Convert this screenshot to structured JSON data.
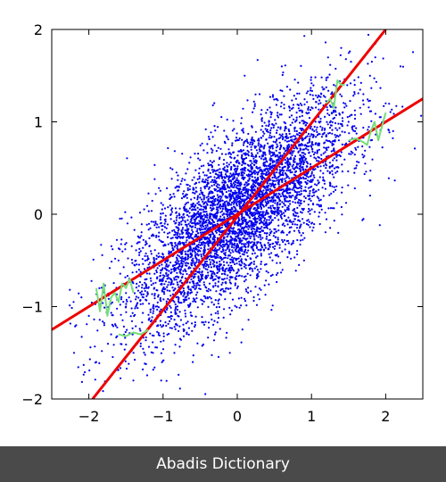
{
  "chart_data": {
    "type": "scatter",
    "title": "",
    "xlabel": "",
    "ylabel": "",
    "xlim": [
      -2.5,
      2.5
    ],
    "ylim": [
      -2,
      2
    ],
    "xticks": [
      -2,
      -1,
      0,
      1,
      2
    ],
    "yticks": [
      -2,
      -1,
      0,
      1,
      2
    ],
    "xtick_labels": [
      "−2",
      "−1",
      "0",
      "1",
      "2"
    ],
    "ytick_labels": [
      "−2",
      "−1",
      "0",
      "1",
      "2"
    ],
    "grid": false,
    "series": [
      {
        "kind": "scatter",
        "color": "#0000ee",
        "points": [
          [
            0.0,
            0.0
          ],
          [
            -0.3,
            -0.25
          ],
          [
            0.35,
            0.3
          ],
          [
            0.6,
            0.55
          ],
          [
            -0.6,
            -0.5
          ],
          [
            0.9,
            0.7
          ],
          [
            -0.9,
            -0.7
          ],
          [
            1.2,
            0.8
          ],
          [
            -1.2,
            -0.8
          ],
          [
            0.2,
            -0.3
          ],
          [
            -0.2,
            0.3
          ],
          [
            0.5,
            0.0
          ],
          [
            -0.5,
            0.0
          ],
          [
            1.0,
            0.3
          ],
          [
            -1.0,
            -0.3
          ],
          [
            1.5,
            1.0
          ],
          [
            -1.5,
            -1.0
          ],
          [
            0.8,
            1.1
          ],
          [
            -0.8,
            -1.1
          ],
          [
            1.8,
            0.8
          ],
          [
            -1.8,
            -0.9
          ],
          [
            0.1,
            0.6
          ],
          [
            -0.1,
            -0.6
          ],
          [
            1.3,
            1.4
          ],
          [
            -1.3,
            -1.4
          ],
          [
            0.7,
            -0.2
          ],
          [
            -0.7,
            0.2
          ],
          [
            2.0,
            1.2
          ],
          [
            -2.0,
            -1.1
          ],
          [
            0.4,
            0.9
          ],
          [
            -0.4,
            -0.9
          ],
          [
            1.1,
            0.1
          ],
          [
            -1.1,
            -0.1
          ],
          [
            0.0,
            0.8
          ],
          [
            0.0,
            -0.8
          ],
          [
            1.6,
            0.5
          ],
          [
            -1.6,
            -0.5
          ],
          [
            0.3,
            1.3
          ],
          [
            -0.3,
            -1.3
          ],
          [
            2.2,
            1.6
          ],
          [
            -2.2,
            -1.5
          ],
          [
            0.9,
            -0.5
          ],
          [
            -0.9,
            0.5
          ],
          [
            1.4,
            1.8
          ],
          [
            -1.4,
            -1.8
          ],
          [
            0.6,
            1.6
          ],
          [
            -0.6,
            -1.6
          ],
          [
            1.9,
            1.9
          ],
          [
            -1.9,
            -1.6
          ],
          [
            0.2,
            0.1
          ],
          [
            -0.2,
            -0.1
          ],
          [
            0.5,
            0.4
          ],
          [
            -0.5,
            -0.4
          ],
          [
            0.8,
            0.2
          ],
          [
            -0.8,
            -0.2
          ],
          [
            1.1,
            1.0
          ],
          [
            -1.1,
            -1.0
          ],
          [
            0.4,
            -0.1
          ],
          [
            -0.4,
            0.1
          ],
          [
            1.7,
            1.3
          ],
          [
            -1.7,
            -1.3
          ],
          [
            0.1,
            1.5
          ],
          [
            -0.1,
            -1.5
          ],
          [
            2.1,
            0.9
          ],
          [
            -2.1,
            -0.9
          ],
          [
            1.3,
            0.4
          ],
          [
            -1.3,
            -0.4
          ],
          [
            0.7,
            0.9
          ],
          [
            -0.7,
            -0.9
          ],
          [
            1.0,
            -0.1
          ],
          [
            -1.0,
            0.1
          ]
        ],
        "note_points": "representative sample of the dense cloud; visible points range about x -2.4..2.4, y -1.9..1.9"
      },
      {
        "kind": "line",
        "color": "#ee0000",
        "points": [
          [
            -1.95,
            -2.0
          ],
          [
            2.0,
            2.0
          ]
        ]
      },
      {
        "kind": "line",
        "color": "#ee0000",
        "points": [
          [
            -2.5,
            -1.25
          ],
          [
            2.5,
            1.25
          ]
        ]
      },
      {
        "kind": "line",
        "color": "#77dd77",
        "points": [
          [
            -1.9,
            -0.8
          ],
          [
            -1.85,
            -1.05
          ],
          [
            -1.8,
            -0.75
          ],
          [
            -1.75,
            -1.1
          ],
          [
            -1.7,
            -0.9
          ],
          [
            -1.65,
            -0.85
          ],
          [
            -1.6,
            -0.95
          ],
          [
            -1.55,
            -0.75
          ],
          [
            -1.5,
            -0.8
          ],
          [
            -1.45,
            -0.7
          ],
          [
            -1.4,
            -0.85
          ]
        ]
      },
      {
        "kind": "line",
        "color": "#77dd77",
        "points": [
          [
            -1.6,
            -1.3
          ],
          [
            -1.5,
            -1.32
          ],
          [
            -1.4,
            -1.28
          ],
          [
            -1.3,
            -1.3
          ],
          [
            -1.2,
            -1.25
          ]
        ]
      },
      {
        "kind": "line",
        "color": "#77dd77",
        "points": [
          [
            1.2,
            1.2
          ],
          [
            1.25,
            1.25
          ],
          [
            1.3,
            1.15
          ],
          [
            1.35,
            1.45
          ],
          [
            1.4,
            1.4
          ],
          [
            1.45,
            1.4
          ]
        ]
      },
      {
        "kind": "line",
        "color": "#77dd77",
        "points": [
          [
            1.5,
            0.8
          ],
          [
            1.6,
            0.82
          ],
          [
            1.7,
            0.78
          ],
          [
            1.75,
            0.75
          ],
          [
            1.8,
            0.9
          ],
          [
            1.85,
            1.0
          ],
          [
            1.9,
            0.8
          ],
          [
            1.95,
            0.95
          ],
          [
            2.0,
            1.1
          ]
        ]
      }
    ]
  },
  "footer": {
    "text": "Abadis Dictionary"
  }
}
